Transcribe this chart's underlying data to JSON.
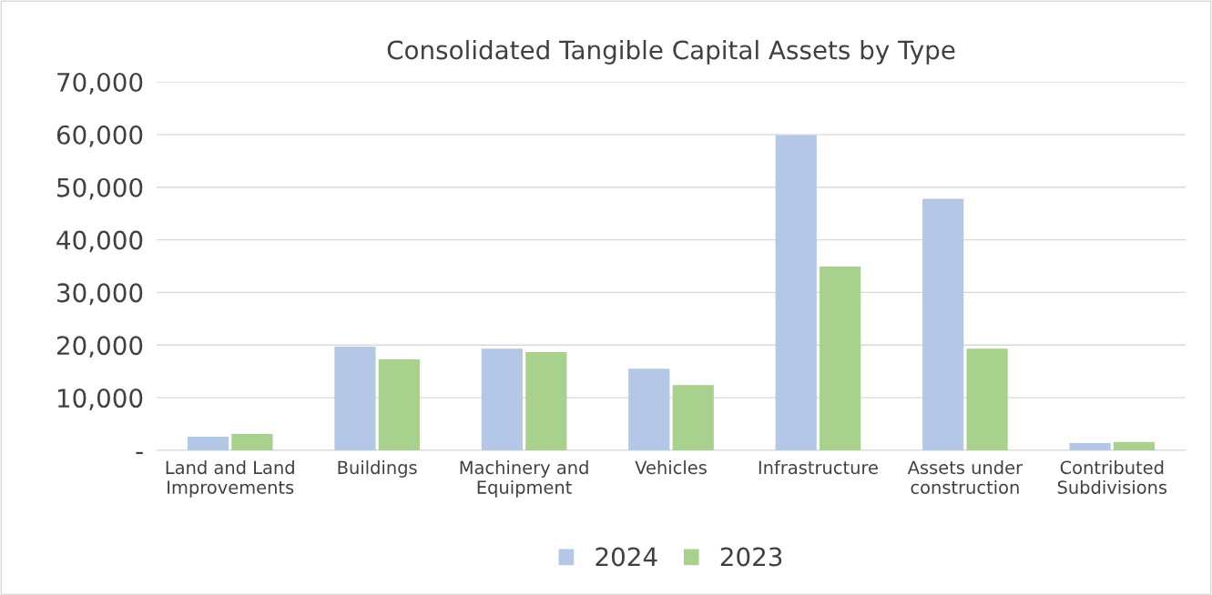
{
  "chart_data": {
    "type": "bar",
    "title": "Consolidated Tangible Capital Assets by Type",
    "categories": [
      "Land and Land\nImprovements",
      "Buildings",
      "Machinery and\nEquipment",
      "Vehicles",
      "Infrastructure",
      "Assets under\nconstruction",
      "Contributed\nSubdivisions"
    ],
    "series": [
      {
        "name": "2024",
        "color": "#b4c7e7",
        "values": [
          2600,
          19700,
          19300,
          15500,
          59900,
          47800,
          1400
        ]
      },
      {
        "name": "2023",
        "color": "#a9d18e",
        "values": [
          3100,
          17300,
          18650,
          12400,
          34900,
          19300,
          1600
        ]
      }
    ],
    "ylim": [
      0,
      70000
    ],
    "yticks": [
      {
        "value": 0,
        "label": "-"
      },
      {
        "value": 10000,
        "label": "10,000"
      },
      {
        "value": 20000,
        "label": "20,000"
      },
      {
        "value": 30000,
        "label": "30,000"
      },
      {
        "value": 40000,
        "label": "40,000"
      },
      {
        "value": 50000,
        "label": "50,000"
      },
      {
        "value": 60000,
        "label": "60,000"
      },
      {
        "value": 70000,
        "label": "70,000"
      }
    ],
    "grid": "y",
    "legend": "bottom"
  }
}
